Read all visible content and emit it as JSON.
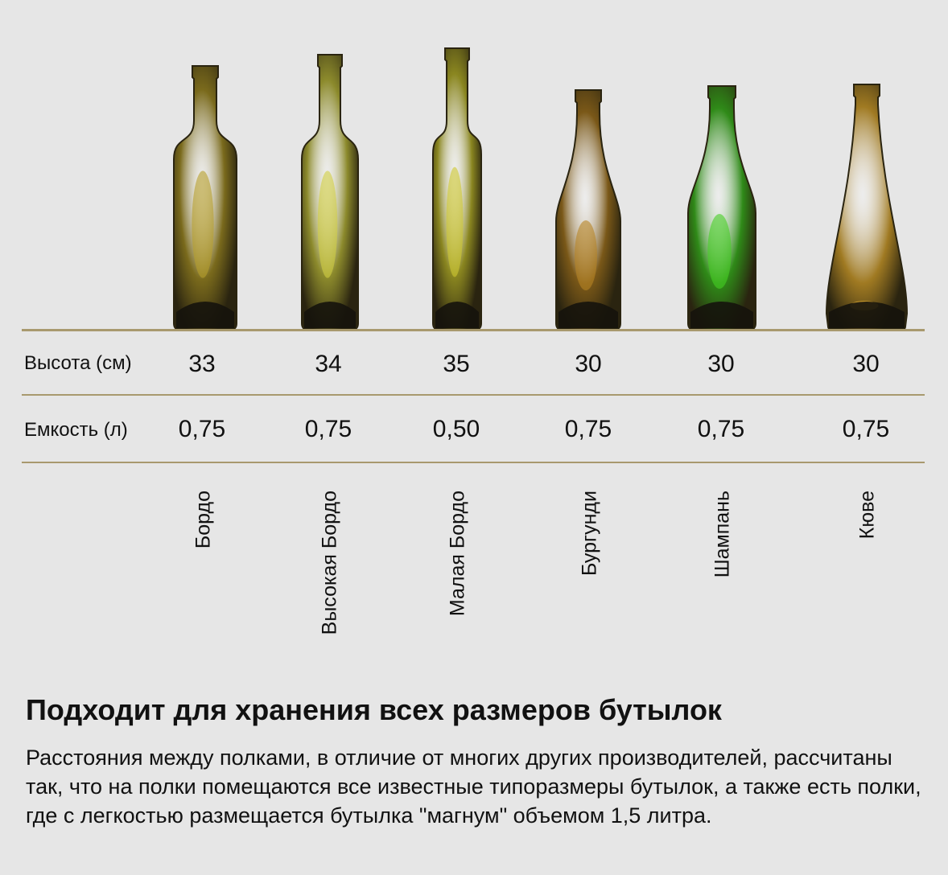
{
  "rows": {
    "height_label": "Высота (см)",
    "capacity_label": "Емкость (л)"
  },
  "bottles": [
    {
      "name": "Бордо",
      "height": "33",
      "capacity": "0,75",
      "color": "#7a6a1c"
    },
    {
      "name": "Высокая Бордо",
      "height": "34",
      "capacity": "0,75",
      "color": "#8c8a2c"
    },
    {
      "name": "Малая Бордо",
      "height": "35",
      "capacity": "0,50",
      "color": "#8a8620"
    },
    {
      "name": "Бургунди",
      "height": "30",
      "capacity": "0,75",
      "color": "#7a5818"
    },
    {
      "name": "Шампань",
      "height": "30",
      "capacity": "0,75",
      "color": "#2f8a18"
    },
    {
      "name": "Кюве",
      "height": "30",
      "capacity": "0,75",
      "color": "#a07a22"
    }
  ],
  "heading": "Подходит для хранения всех размеров бутылок",
  "description": "Расстояния между полками, в отличие от многих других производителей, рассчитаны так, что на полки помещаются все известные типоразмеры бутылок, а также есть полки, где с легкостью размещается бутылка \"магнум\" объемом 1,5 литра."
}
